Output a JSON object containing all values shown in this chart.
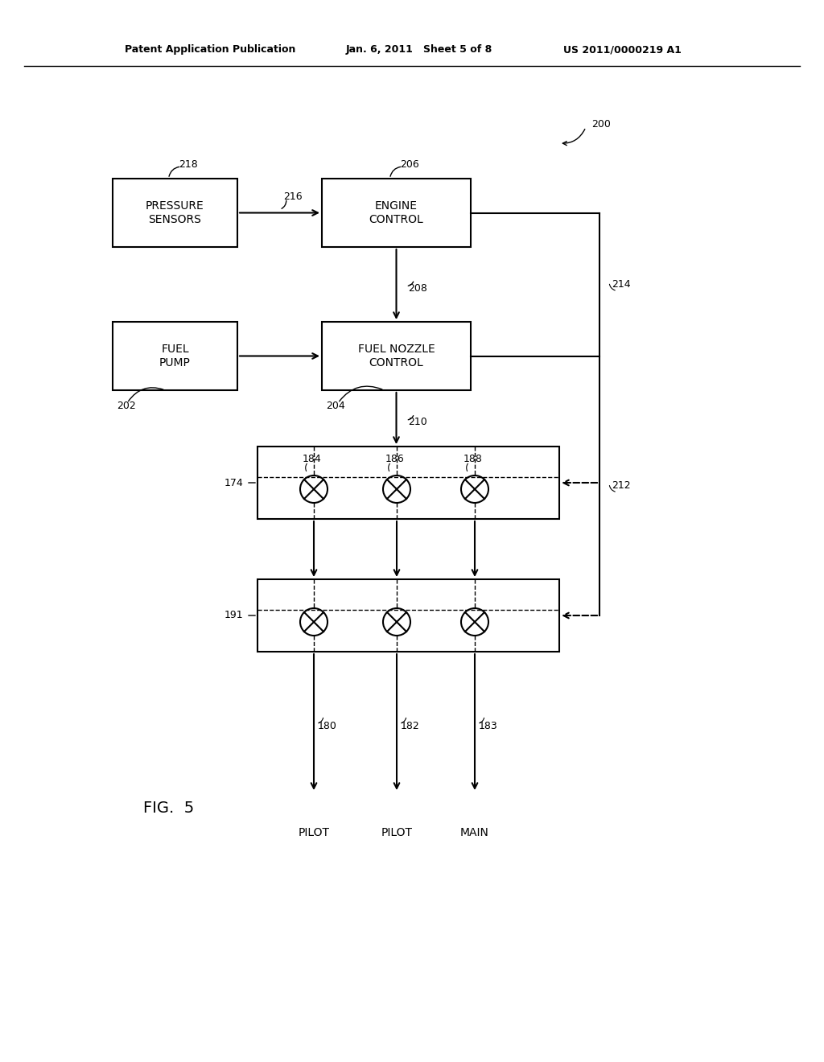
{
  "bg_color": "#ffffff",
  "header_left": "Patent Application Publication",
  "header_mid": "Jan. 6, 2011   Sheet 5 of 8",
  "header_right": "US 2011/0000219 A1",
  "fig_label": "FIG.  5",
  "ref_200": "200",
  "ref_206": "206",
  "ref_218": "218",
  "ref_216": "216",
  "ref_208": "208",
  "ref_214": "214",
  "ref_212": "212",
  "ref_202": "202",
  "ref_204": "204",
  "ref_210": "210",
  "ref_174": "174",
  "ref_184": "184",
  "ref_186": "186",
  "ref_188": "188",
  "ref_191": "191",
  "ref_180": "180",
  "ref_182": "182",
  "ref_183": "183",
  "ps_label": "PRESSURE\nSENSORS",
  "ec_label": "ENGINE\nCONTROL",
  "fp_label": "FUEL\nPUMP",
  "fn_label": "FUEL NOZZLE\nCONTROL",
  "out_labels": [
    "PILOT",
    "PILOT",
    "MAIN"
  ]
}
